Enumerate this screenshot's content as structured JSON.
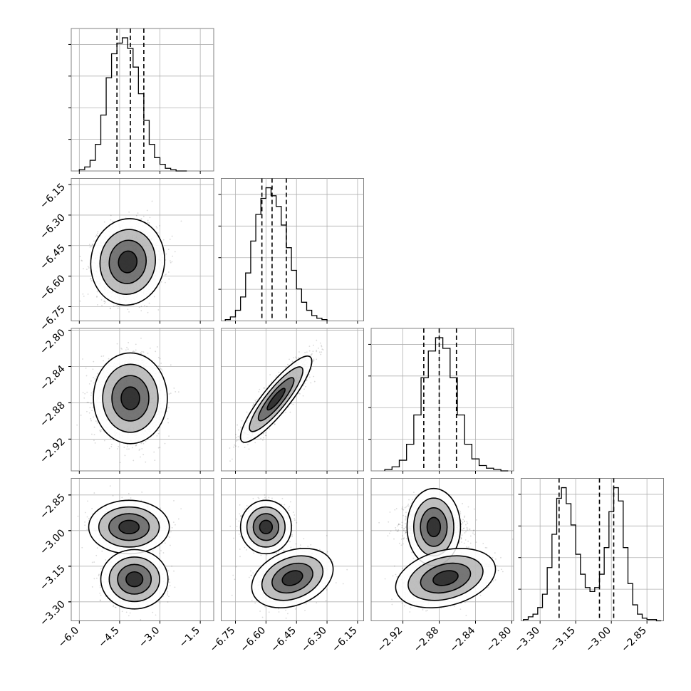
{
  "chart_data": {
    "type": "corner",
    "title": "",
    "parameters": [
      {
        "label": "",
        "lim": [
          -6.3,
          -1.0
        ],
        "ticks": [
          -6.0,
          -4.5,
          -3.0,
          -1.5
        ],
        "tick_labels": [
          "−6.0",
          "−4.5",
          "−3.0",
          "−1.5"
        ],
        "quantiles": [
          -4.6,
          -4.1,
          -3.6
        ],
        "hist_edges": [
          -6.0,
          -5.8,
          -5.6,
          -5.4,
          -5.2,
          -5.0,
          -4.8,
          -4.6,
          -4.4,
          -4.2,
          -4.0,
          -3.8,
          -3.6,
          -3.4,
          -3.2,
          -3.0,
          -2.8,
          -2.6,
          -2.4,
          -2.2,
          -2.0
        ],
        "hist_values": [
          0.01,
          0.03,
          0.08,
          0.2,
          0.42,
          0.7,
          0.88,
          0.96,
          1.0,
          0.92,
          0.78,
          0.58,
          0.38,
          0.2,
          0.1,
          0.05,
          0.02,
          0.01,
          0.0,
          0.0
        ]
      },
      {
        "label": "",
        "lim": [
          -6.82,
          -6.12
        ],
        "ticks": [
          -6.75,
          -6.6,
          -6.45,
          -6.3,
          -6.15
        ],
        "tick_labels": [
          "−6.75",
          "−6.60",
          "−6.45",
          "−6.30",
          "−6.15"
        ],
        "quantiles": [
          -6.62,
          -6.57,
          -6.5
        ],
        "hist_edges": [
          -6.8,
          -6.775,
          -6.75,
          -6.725,
          -6.7,
          -6.675,
          -6.65,
          -6.625,
          -6.6,
          -6.575,
          -6.55,
          -6.525,
          -6.5,
          -6.475,
          -6.45,
          -6.425,
          -6.4,
          -6.375,
          -6.35,
          -6.325,
          -6.3
        ],
        "hist_values": [
          0.01,
          0.03,
          0.08,
          0.18,
          0.36,
          0.6,
          0.8,
          0.92,
          1.0,
          0.94,
          0.86,
          0.72,
          0.55,
          0.38,
          0.24,
          0.14,
          0.08,
          0.04,
          0.02,
          0.01
        ]
      },
      {
        "label": "",
        "lim": [
          -2.955,
          -2.798
        ],
        "ticks": [
          -2.92,
          -2.88,
          -2.84,
          -2.8
        ],
        "tick_labels": [
          "−2.92",
          "−2.88",
          "−2.84",
          "−2.80"
        ],
        "quantiles": [
          -2.897,
          -2.88,
          -2.861
        ],
        "hist_edges": [
          -2.94,
          -2.932,
          -2.924,
          -2.916,
          -2.908,
          -2.9,
          -2.892,
          -2.884,
          -2.876,
          -2.868,
          -2.86,
          -2.852,
          -2.844,
          -2.836,
          -2.828,
          -2.82,
          -2.812,
          -2.804
        ],
        "hist_values": [
          0.01,
          0.03,
          0.08,
          0.2,
          0.42,
          0.7,
          0.9,
          1.0,
          0.92,
          0.7,
          0.42,
          0.2,
          0.09,
          0.04,
          0.02,
          0.01,
          0.0
        ]
      },
      {
        "label": "",
        "lim": [
          -3.38,
          -2.78
        ],
        "ticks": [
          -3.3,
          -3.15,
          -3.0,
          -2.85
        ],
        "tick_labels": [
          "−3.30",
          "−3.15",
          "−3.00",
          "−2.85"
        ],
        "quantiles": [
          -3.22,
          -3.05,
          -2.99
        ],
        "hist_edges": [
          -3.37,
          -3.35,
          -3.33,
          -3.31,
          -3.29,
          -3.27,
          -3.25,
          -3.23,
          -3.21,
          -3.19,
          -3.17,
          -3.15,
          -3.13,
          -3.11,
          -3.09,
          -3.07,
          -3.05,
          -3.03,
          -3.01,
          -2.99,
          -2.97,
          -2.95,
          -2.93,
          -2.91,
          -2.89,
          -2.87,
          -2.85,
          -2.83,
          -2.81,
          -2.79
        ],
        "hist_values": [
          0.01,
          0.03,
          0.05,
          0.1,
          0.2,
          0.4,
          0.65,
          0.92,
          1.0,
          0.88,
          0.72,
          0.5,
          0.35,
          0.25,
          0.22,
          0.25,
          0.35,
          0.55,
          0.82,
          1.0,
          0.9,
          0.55,
          0.28,
          0.12,
          0.05,
          0.02,
          0.01,
          0.01,
          0.0
        ]
      }
    ],
    "panels": [
      {
        "row": 1,
        "col": 0,
        "modes": [
          {
            "cx": -4.2,
            "cy": -6.53,
            "sx": 0.55,
            "sy": 0.085,
            "rho": 0.05,
            "w": 1
          }
        ]
      },
      {
        "row": 2,
        "col": 0,
        "modes": [
          {
            "cx": -4.1,
            "cy": -2.875,
            "sx": 0.55,
            "sy": 0.02,
            "rho": 0.0,
            "w": 1
          }
        ]
      },
      {
        "row": 2,
        "col": 1,
        "modes": [
          {
            "cx": -6.55,
            "cy": -2.876,
            "sx": 0.07,
            "sy": 0.019,
            "rho": 0.88,
            "w": 1
          }
        ]
      },
      {
        "row": 3,
        "col": 0,
        "modes": [
          {
            "cx": -4.15,
            "cy": -2.985,
            "sx": 0.6,
            "sy": 0.045,
            "rho": 0.0,
            "w": 0.52
          },
          {
            "cx": -3.95,
            "cy": -3.205,
            "sx": 0.5,
            "sy": 0.05,
            "rho": 0.0,
            "w": 0.48
          }
        ]
      },
      {
        "row": 3,
        "col": 1,
        "modes": [
          {
            "cx": -6.6,
            "cy": -2.985,
            "sx": 0.05,
            "sy": 0.045,
            "rho": 0.0,
            "w": 0.52
          },
          {
            "cx": -6.47,
            "cy": -3.2,
            "sx": 0.08,
            "sy": 0.05,
            "rho": 0.3,
            "w": 0.48
          }
        ]
      },
      {
        "row": 3,
        "col": 2,
        "modes": [
          {
            "cx": -2.886,
            "cy": -2.985,
            "sx": 0.017,
            "sy": 0.045,
            "rho": 0.0,
            "w": 0.52
          },
          {
            "cx": -2.873,
            "cy": -3.2,
            "sx": 0.022,
            "sy": 0.05,
            "rho": 0.3,
            "w": 0.48
          }
        ]
      }
    ],
    "contour_levels": [
      "0.5σ",
      "1σ",
      "1.5σ",
      "2σ"
    ],
    "grid": true,
    "colors": {
      "hist": "#000000",
      "points": "#000000",
      "contour": "#000000",
      "grid": "#b0b0b0"
    }
  }
}
